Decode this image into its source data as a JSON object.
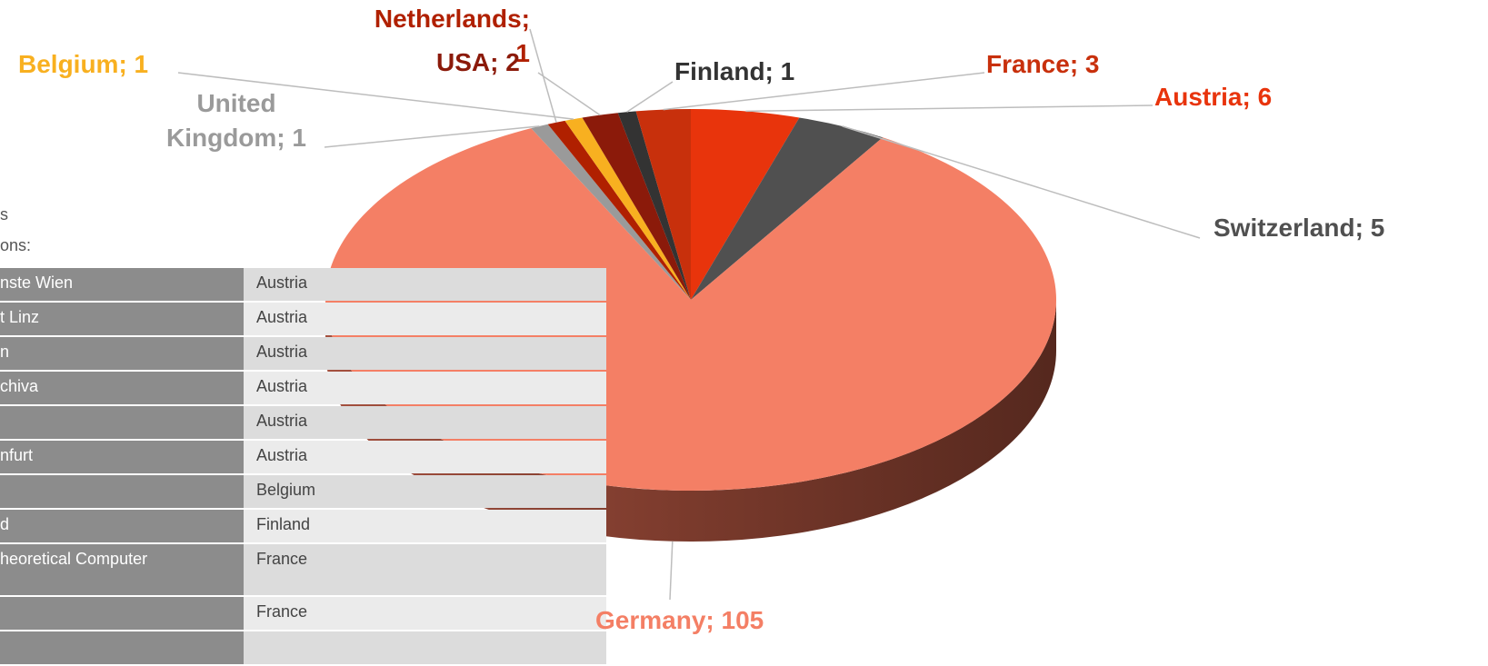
{
  "chart_data": {
    "type": "pie",
    "categories": [
      "Austria",
      "Switzerland",
      "Germany",
      "United Kingdom",
      "Netherlands",
      "Belgium",
      "USA",
      "Finland",
      "France"
    ],
    "values": [
      6,
      5,
      105,
      1,
      1,
      1,
      2,
      1,
      3
    ],
    "value_labels": [
      "Austria; 6",
      "Switzerland; 5",
      "Germany; 105",
      "United Kingdom; 1",
      "Netherlands; 1",
      "Belgium; 1",
      "USA; 2",
      "Finland; 1",
      "France; 3"
    ],
    "colors": [
      "#e8340c",
      "#505050",
      "#f47f65",
      "#9a9a9a",
      "#b02000",
      "#f8b020",
      "#8b1a0a",
      "#333333",
      "#c8300c"
    ]
  },
  "side_text": [
    "s",
    "ons:"
  ],
  "table": {
    "rows": [
      [
        "nste Wien",
        "Austria"
      ],
      [
        "t Linz",
        "Austria"
      ],
      [
        "n",
        "Austria"
      ],
      [
        "chiva",
        "Austria"
      ],
      [
        null,
        "Austria"
      ],
      [
        "nfurt",
        "Austria"
      ],
      [
        null,
        "Belgium"
      ],
      [
        "d",
        "Finland"
      ],
      [
        "heoretical Computer",
        "France"
      ],
      [
        null,
        "France"
      ]
    ]
  }
}
